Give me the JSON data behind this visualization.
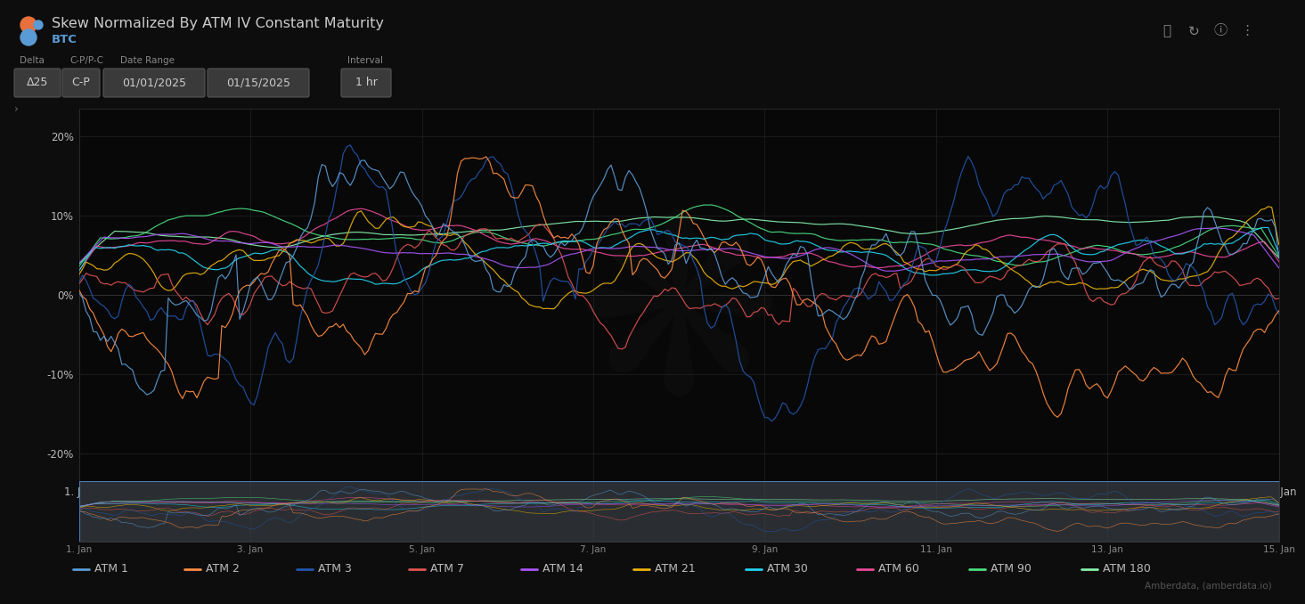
{
  "title": "Skew Normalized By ATM IV Constant Maturity",
  "subtitle": "BTC",
  "bg_color": "#0d0d0d",
  "header_bg": "#3a3a3a",
  "plot_bg": "#080808",
  "grid_color": "#222222",
  "text_color": "#bbbbbb",
  "axis_color": "#444444",
  "x_tick_labels": [
    "1. Jan",
    "3. Jan",
    "5. Jan",
    "7. Jan",
    "9. Jan",
    "11. Jan",
    "13. Jan",
    "15. Jan"
  ],
  "y_tick_labels": [
    "20%",
    "10%",
    "0%",
    "-10%",
    "-20%"
  ],
  "y_values": [
    0.2,
    0.1,
    0.0,
    -0.1,
    -0.2
  ],
  "ylim": [
    -0.235,
    0.235
  ],
  "n_points": 337,
  "series_names": [
    "ATM 1",
    "ATM 2",
    "ATM 3",
    "ATM 7",
    "ATM 14",
    "ATM 21",
    "ATM 30",
    "ATM 60",
    "ATM 90",
    "ATM 180"
  ],
  "series_colors": [
    "#5b9bd5",
    "#ff8c42",
    "#2255aa",
    "#e05252",
    "#a855f7",
    "#eab308",
    "#22d3ee",
    "#ec4899",
    "#4ade80",
    "#86efac"
  ],
  "delta_label": "Δ25",
  "cp_label": "C-P",
  "date_from": "01/01/2025",
  "date_to": "01/15/2025",
  "interval": "1 hr",
  "footer_text": "Amberdata, (amberdata.io)"
}
